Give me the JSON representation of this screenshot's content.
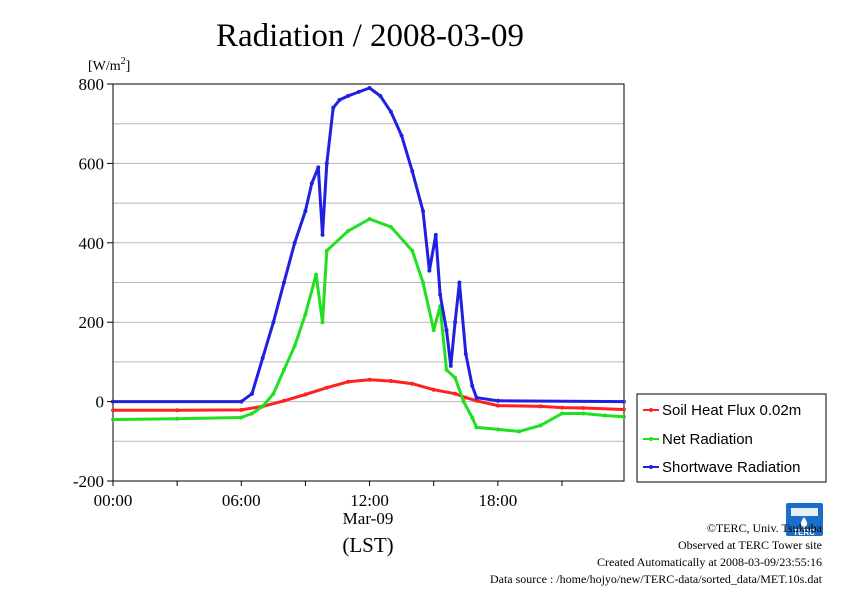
{
  "title": "Radiation / 2008-03-09",
  "unit_label": "[W/m",
  "unit_sup": "2",
  "unit_close": "]",
  "xlabel": "(LST)",
  "date_label": "Mar-09",
  "footer": {
    "copyright": "©TERC, Univ. Tsukuba",
    "observed": "Observed at TERC Tower site",
    "created": "Created Automatically at 2008-03-09/23:55:16",
    "source": "Data source : /home/hojyo/new/TERC-data/sorted_data/MET.10s.dat"
  },
  "logo": {
    "text": "TERC",
    "color": "#1a6ec8"
  },
  "chart_data": {
    "type": "line",
    "title": "Radiation / 2008-03-09",
    "ylabel": "[W/m2]",
    "xlabel": "(LST)",
    "xlim": [
      0,
      23.9
    ],
    "ylim": [
      -200,
      800
    ],
    "yticks": [
      -200,
      0,
      200,
      400,
      600,
      800
    ],
    "ytick_labels": [
      "-200",
      "0",
      "200",
      "400",
      "600",
      "800"
    ],
    "xticks": [
      0,
      6,
      12,
      18
    ],
    "xtick_labels": [
      "00:00",
      "06:00",
      "12:00",
      "18:00"
    ],
    "grid": true,
    "legend_position": "right",
    "series": [
      {
        "name": "Soil Heat Flux 0.02m",
        "color": "#ff2020",
        "points": [
          [
            0,
            -22
          ],
          [
            3,
            -22
          ],
          [
            6,
            -21
          ],
          [
            7,
            -12
          ],
          [
            8,
            2
          ],
          [
            9,
            18
          ],
          [
            10,
            35
          ],
          [
            11,
            50
          ],
          [
            12,
            55
          ],
          [
            13,
            52
          ],
          [
            14,
            45
          ],
          [
            15,
            30
          ],
          [
            16,
            20
          ],
          [
            16.5,
            10
          ],
          [
            17,
            2
          ],
          [
            18,
            -10
          ],
          [
            20,
            -12
          ],
          [
            21,
            -15
          ],
          [
            22,
            -16
          ],
          [
            23.9,
            -20
          ]
        ]
      },
      {
        "name": "Net Radiation",
        "color": "#20e020",
        "points": [
          [
            0,
            -45
          ],
          [
            3,
            -43
          ],
          [
            6,
            -40
          ],
          [
            6.5,
            -30
          ],
          [
            7,
            -12
          ],
          [
            7.5,
            20
          ],
          [
            8,
            80
          ],
          [
            8.5,
            140
          ],
          [
            9,
            220
          ],
          [
            9.5,
            320
          ],
          [
            9.8,
            200
          ],
          [
            10,
            380
          ],
          [
            11,
            430
          ],
          [
            12,
            460
          ],
          [
            13,
            440
          ],
          [
            14,
            380
          ],
          [
            14.5,
            300
          ],
          [
            15,
            180
          ],
          [
            15.3,
            240
          ],
          [
            15.6,
            80
          ],
          [
            16,
            60
          ],
          [
            16.4,
            0
          ],
          [
            16.8,
            -40
          ],
          [
            17,
            -65
          ],
          [
            18,
            -70
          ],
          [
            19,
            -75
          ],
          [
            20,
            -60
          ],
          [
            21,
            -30
          ],
          [
            22,
            -30
          ],
          [
            23,
            -35
          ],
          [
            23.9,
            -38
          ]
        ]
      },
      {
        "name": "Shortwave Radiation",
        "color": "#2020e0",
        "points": [
          [
            0,
            0
          ],
          [
            6,
            0
          ],
          [
            6.5,
            20
          ],
          [
            7,
            110
          ],
          [
            7.5,
            200
          ],
          [
            8,
            300
          ],
          [
            8.5,
            400
          ],
          [
            9,
            480
          ],
          [
            9.3,
            550
          ],
          [
            9.6,
            590
          ],
          [
            9.8,
            420
          ],
          [
            10,
            600
          ],
          [
            10.3,
            740
          ],
          [
            10.6,
            760
          ],
          [
            11,
            770
          ],
          [
            11.5,
            780
          ],
          [
            12,
            790
          ],
          [
            12.5,
            770
          ],
          [
            13,
            730
          ],
          [
            13.5,
            670
          ],
          [
            14,
            580
          ],
          [
            14.5,
            480
          ],
          [
            14.8,
            330
          ],
          [
            15.1,
            420
          ],
          [
            15.3,
            270
          ],
          [
            15.6,
            180
          ],
          [
            15.8,
            90
          ],
          [
            16,
            200
          ],
          [
            16.2,
            300
          ],
          [
            16.5,
            120
          ],
          [
            16.8,
            40
          ],
          [
            17,
            10
          ],
          [
            18,
            2
          ],
          [
            23.9,
            0
          ]
        ]
      }
    ]
  }
}
